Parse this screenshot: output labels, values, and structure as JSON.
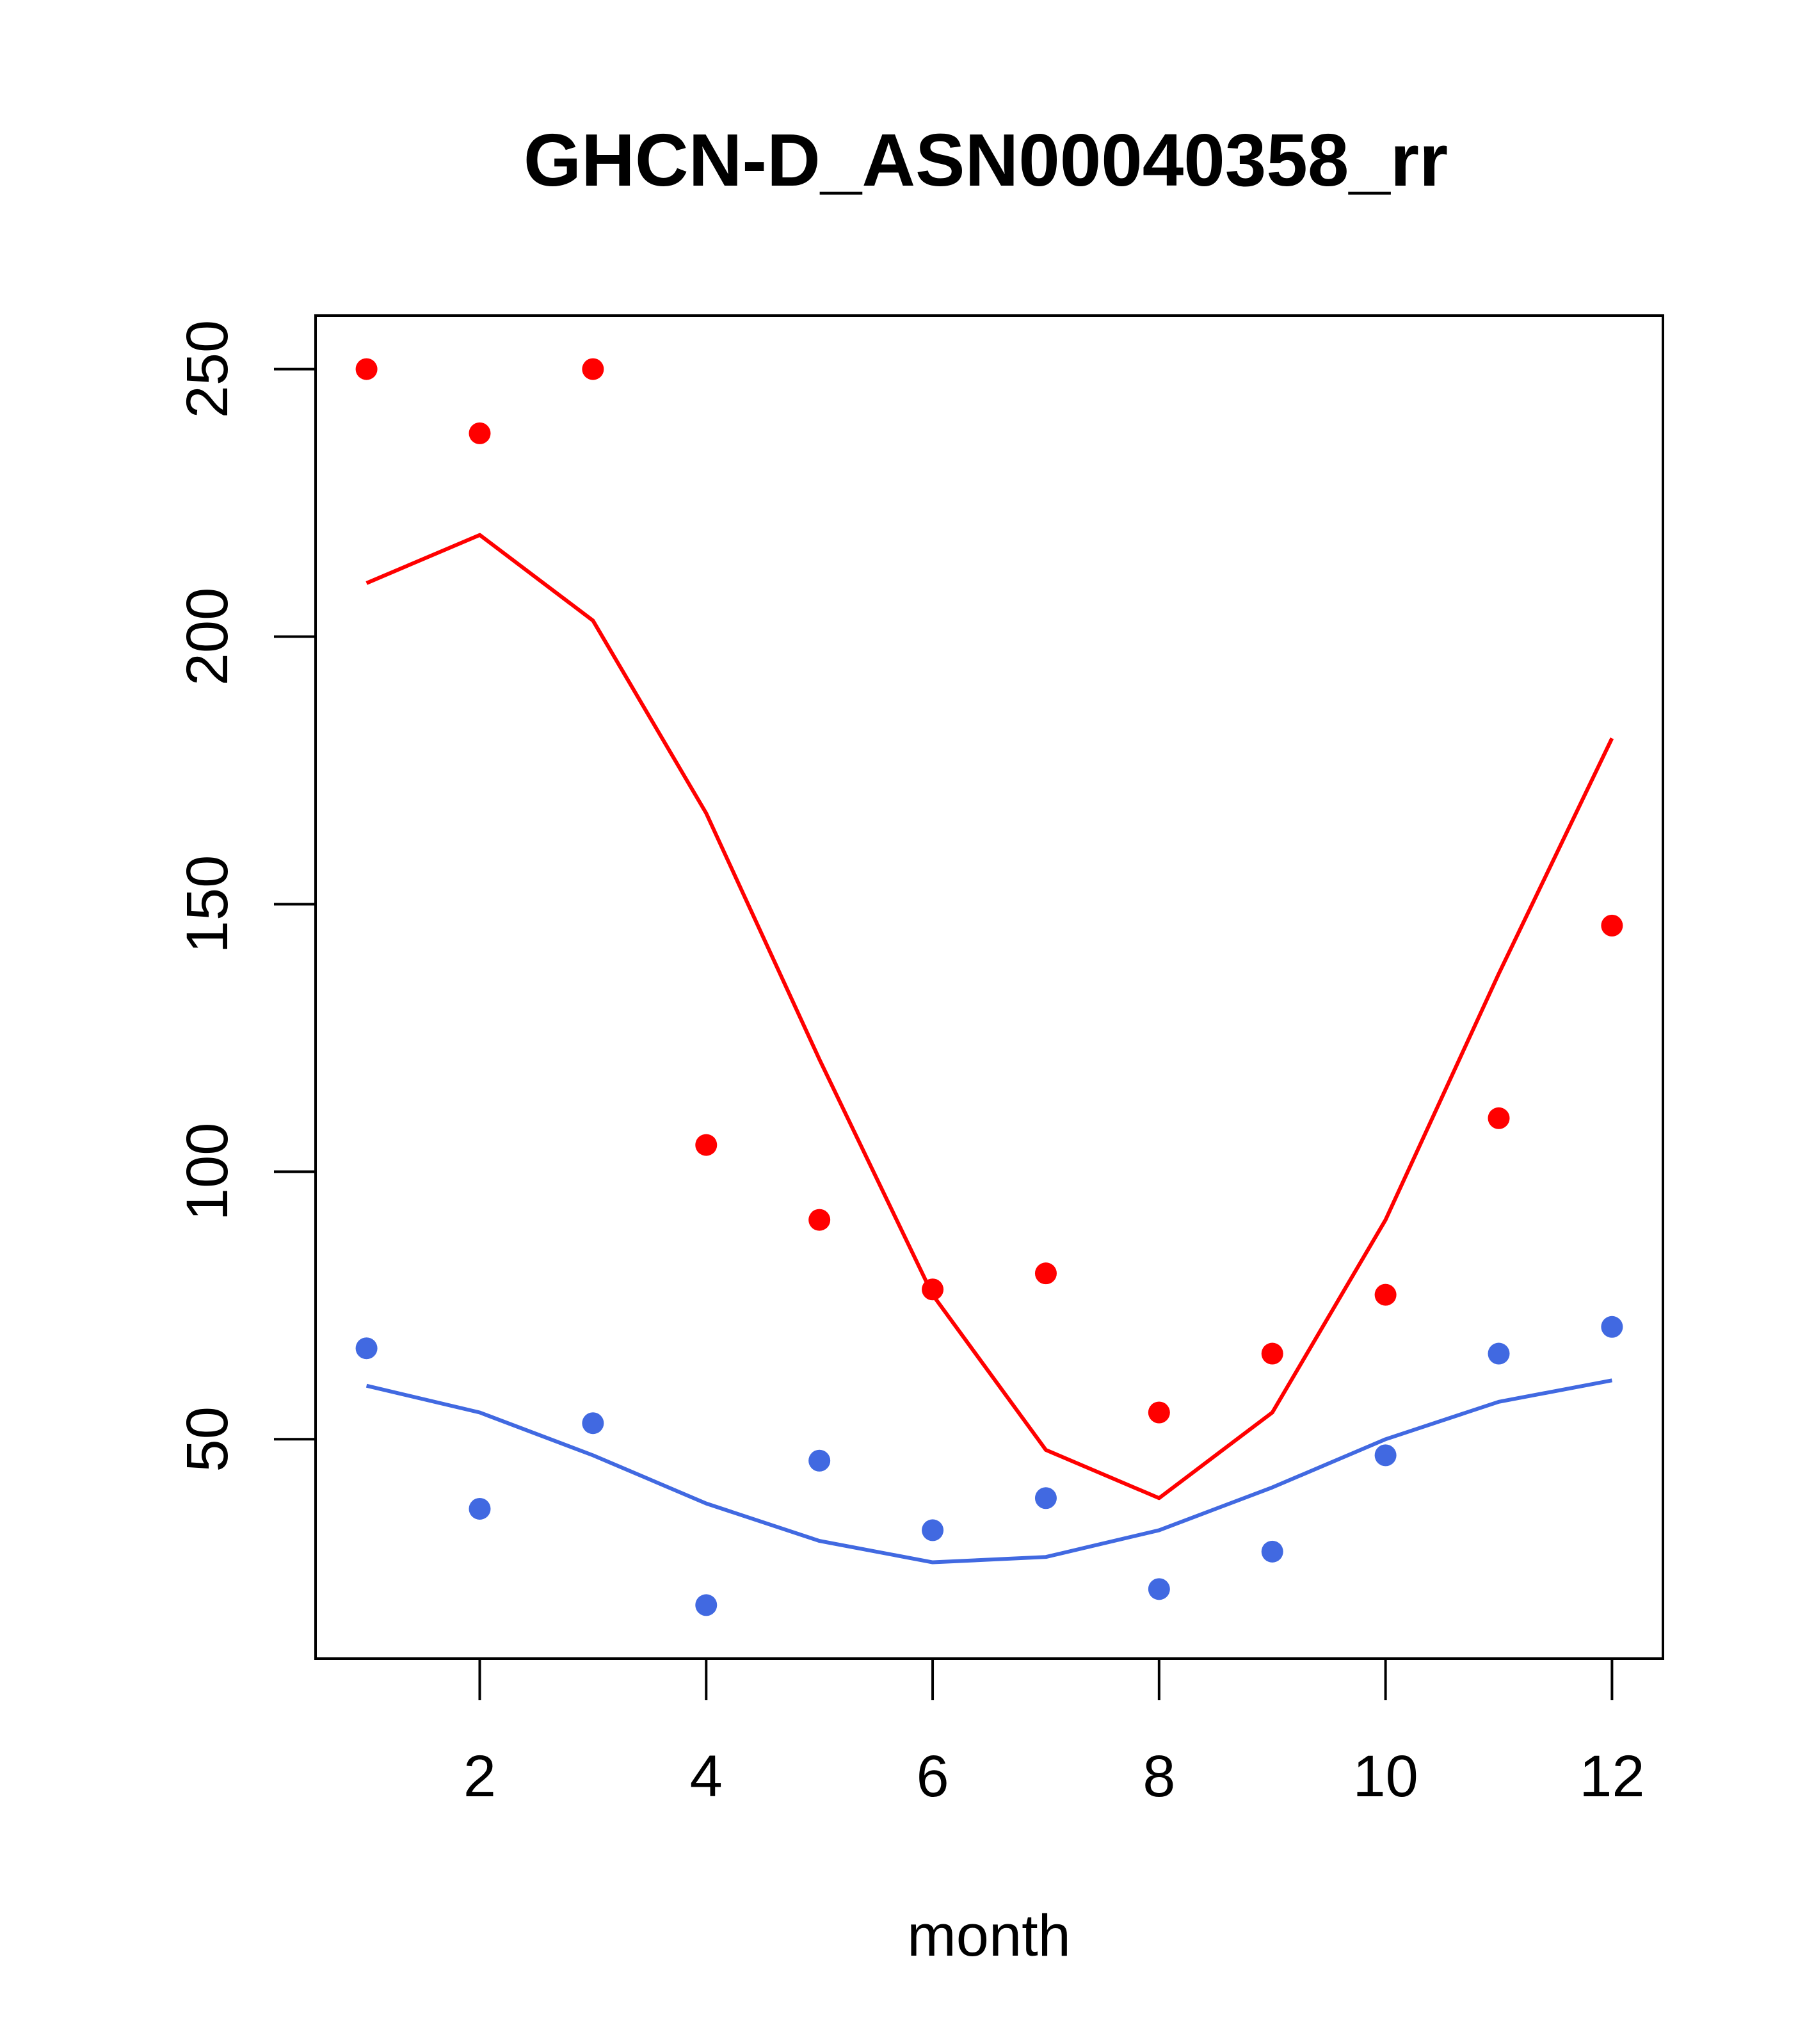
{
  "chart_data": {
    "type": "scatter",
    "title": "GHCN-D_ASN00040358_rr",
    "xlabel": "month",
    "ylabel": "",
    "xlim": [
      0.55,
      12.45
    ],
    "ylim": [
      9,
      260
    ],
    "xticks": [
      2,
      4,
      6,
      8,
      10,
      12
    ],
    "yticks": [
      50,
      100,
      150,
      200,
      250
    ],
    "grid": false,
    "legend": "none",
    "x": [
      1,
      2,
      3,
      4,
      5,
      6,
      7,
      8,
      9,
      10,
      11,
      12
    ],
    "series": [
      {
        "color": "#ff0000",
        "points": [
          250,
          238,
          250,
          105,
          91,
          78,
          81,
          55,
          66,
          77,
          110,
          146
        ],
        "line": [
          210,
          219,
          203,
          167,
          121,
          77,
          48,
          39,
          55,
          91,
          137,
          181
        ]
      },
      {
        "color": "#4169e1",
        "points": [
          67,
          37,
          53,
          19,
          46,
          33,
          39,
          22,
          29,
          47,
          66,
          71
        ],
        "line": [
          60,
          55,
          47,
          38,
          31,
          27,
          28,
          33,
          41,
          50,
          57,
          61
        ]
      }
    ]
  }
}
